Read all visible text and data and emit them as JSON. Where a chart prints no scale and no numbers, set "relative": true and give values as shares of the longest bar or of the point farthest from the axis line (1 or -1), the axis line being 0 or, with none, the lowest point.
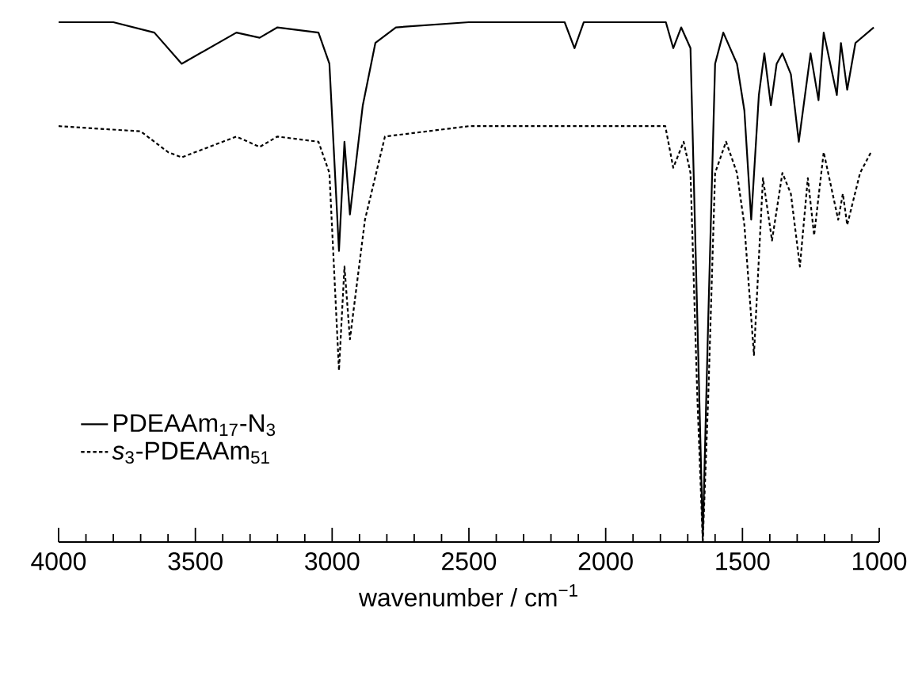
{
  "chart_data": {
    "type": "line",
    "relative": true,
    "xlabel": "wavenumber / cm$^{−1}$",
    "xlim": [
      4000,
      1000
    ],
    "xticks": [
      4000,
      3500,
      3000,
      2500,
      2000,
      1500,
      1000
    ],
    "legend": "left",
    "grid": false,
    "marker": "none",
    "series": [
      {
        "name": "PDEAAm$_{17}$-N$_{3}$",
        "color": "#000000",
        "line_style": "solid",
        "x": [
          4000,
          3800,
          3650,
          3550,
          3450,
          3350,
          3265,
          3200,
          3050,
          3010,
          2975,
          2955,
          2935,
          2888,
          2842,
          2767,
          2500,
          2150,
          2114,
          2080,
          1780,
          1753,
          1724,
          1690,
          1665,
          1645,
          1625,
          1600,
          1570,
          1520,
          1493,
          1468,
          1440,
          1420,
          1396,
          1375,
          1354,
          1323,
          1294,
          1251,
          1222,
          1203,
          1155,
          1140,
          1117,
          1087,
          1020
        ],
        "values": [
          1.0,
          1.0,
          0.98,
          0.92,
          0.95,
          0.98,
          0.97,
          0.99,
          0.98,
          0.92,
          0.56,
          0.77,
          0.63,
          0.84,
          0.96,
          0.99,
          1.0,
          1.0,
          0.95,
          1.0,
          1.0,
          0.95,
          0.99,
          0.95,
          0.43,
          0.01,
          0.43,
          0.92,
          0.98,
          0.92,
          0.83,
          0.62,
          0.86,
          0.94,
          0.84,
          0.92,
          0.94,
          0.9,
          0.77,
          0.94,
          0.85,
          0.98,
          0.86,
          0.96,
          0.87,
          0.96,
          0.99
        ]
      },
      {
        "name": "*s*$_{3}$-PDEAAm$_{51}$",
        "color": "#000000",
        "line_style": "dashed",
        "x": [
          4000,
          3700,
          3600,
          3550,
          3450,
          3350,
          3265,
          3200,
          3050,
          3010,
          2975,
          2955,
          2935,
          2880,
          2807,
          2500,
          2000,
          1782,
          1753,
          1715,
          1690,
          1665,
          1645,
          1625,
          1600,
          1560,
          1520,
          1493,
          1458,
          1425,
          1392,
          1354,
          1323,
          1290,
          1261,
          1238,
          1203,
          1150,
          1133,
          1117,
          1070,
          1030
        ],
        "values": [
          0.8,
          0.79,
          0.75,
          0.74,
          0.76,
          0.78,
          0.76,
          0.78,
          0.77,
          0.71,
          0.33,
          0.53,
          0.39,
          0.62,
          0.78,
          0.8,
          0.8,
          0.8,
          0.72,
          0.77,
          0.71,
          0.28,
          0.0,
          0.28,
          0.71,
          0.77,
          0.71,
          0.61,
          0.36,
          0.7,
          0.58,
          0.71,
          0.67,
          0.53,
          0.7,
          0.59,
          0.75,
          0.62,
          0.67,
          0.61,
          0.71,
          0.75
        ]
      }
    ]
  }
}
